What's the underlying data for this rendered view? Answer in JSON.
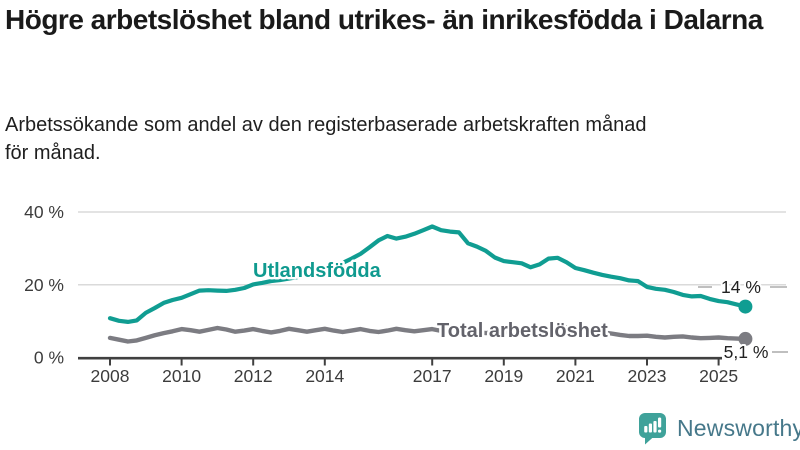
{
  "header": {
    "title": "Högre arbetslöshet bland utrikes- än inrikesfödda i Dalarna",
    "subtitle": "Arbetssökande som andel av den registerbaserade arbetskraften månad för månad."
  },
  "chart_data": {
    "type": "line",
    "title": "Högre arbetslöshet bland utrikes- än inrikesfödda i Dalarna",
    "subtitle": "Arbetssökande som andel av den registerbaserade arbetskraften månad för månad.",
    "unit": "%",
    "grid": "horizontal",
    "legend": "inline-labels",
    "ylim": [
      0,
      42
    ],
    "yticks": [
      {
        "label": "0 %",
        "value": 0
      },
      {
        "label": "20 %",
        "value": 20
      },
      {
        "label": "40 %",
        "value": 40
      }
    ],
    "xticks": [
      {
        "label": "2008",
        "year": 2008
      },
      {
        "label": "2010",
        "year": 2010
      },
      {
        "label": "2012",
        "year": 2012
      },
      {
        "label": "2014",
        "year": 2014
      },
      {
        "label": "2017",
        "year": 2017
      },
      {
        "label": "2019",
        "year": 2019
      },
      {
        "label": "2021",
        "year": 2021
      },
      {
        "label": "2023",
        "year": 2023
      },
      {
        "label": "2025",
        "year": 2025
      }
    ],
    "x": [
      2008,
      2008.25,
      2008.5,
      2008.75,
      2009,
      2009.25,
      2009.5,
      2009.75,
      2010,
      2010.25,
      2010.5,
      2010.75,
      2011,
      2011.25,
      2011.5,
      2011.75,
      2012,
      2012.25,
      2012.5,
      2012.75,
      2013,
      2013.25,
      2013.5,
      2013.75,
      2014,
      2014.25,
      2014.5,
      2014.75,
      2015,
      2015.25,
      2015.5,
      2015.75,
      2016,
      2016.25,
      2016.5,
      2016.75,
      2017,
      2017.25,
      2017.5,
      2017.75,
      2018,
      2018.25,
      2018.5,
      2018.75,
      2019,
      2019.25,
      2019.5,
      2019.75,
      2020,
      2020.25,
      2020.5,
      2020.75,
      2021,
      2021.25,
      2021.5,
      2021.75,
      2022,
      2022.25,
      2022.5,
      2022.75,
      2023,
      2023.25,
      2023.5,
      2023.75,
      2024,
      2024.25,
      2024.5,
      2024.75,
      2025,
      2025.25,
      2025.5,
      2025.75
    ],
    "series": [
      {
        "name": "Utlandsfödda",
        "color": "#109d92",
        "label_color": "#0f9a8f",
        "end_label": "14 %",
        "end_value": 14,
        "values": [
          10.8,
          10.1,
          9.8,
          10.2,
          12.3,
          13.6,
          15.0,
          15.8,
          16.4,
          17.4,
          18.4,
          18.5,
          18.4,
          18.3,
          18.6,
          19.1,
          20.1,
          20.5,
          21.0,
          21.3,
          21.7,
          22.1,
          22.6,
          23.3,
          24.2,
          25.0,
          26.0,
          27.2,
          28.5,
          30.3,
          32.2,
          33.4,
          32.7,
          33.2,
          34.0,
          35.0,
          36.0,
          35.0,
          34.6,
          34.4,
          31.4,
          30.5,
          29.3,
          27.5,
          26.5,
          26.2,
          25.9,
          24.8,
          25.6,
          27.2,
          27.4,
          26.2,
          24.6,
          24.0,
          23.3,
          22.7,
          22.2,
          21.8,
          21.2,
          21.0,
          19.4,
          18.9,
          18.6,
          18.0,
          17.2,
          16.8,
          16.9,
          16.1,
          15.5,
          15.2,
          14.6,
          14.0
        ]
      },
      {
        "name": "Total arbetslöshet",
        "color": "#7c7c82",
        "label_color": "#63636b",
        "end_label": "5,1 %",
        "end_value": 5.1,
        "values": [
          5.4,
          4.9,
          4.4,
          4.7,
          5.4,
          6.1,
          6.7,
          7.2,
          7.8,
          7.5,
          7.1,
          7.6,
          8.1,
          7.7,
          7.1,
          7.4,
          7.8,
          7.3,
          6.9,
          7.3,
          7.9,
          7.5,
          7.1,
          7.5,
          7.9,
          7.4,
          7.0,
          7.4,
          7.8,
          7.3,
          7.0,
          7.4,
          7.9,
          7.5,
          7.2,
          7.5,
          7.8,
          7.3,
          7.0,
          7.2,
          7.4,
          7.0,
          6.7,
          6.9,
          7.1,
          6.8,
          6.6,
          6.9,
          7.6,
          8.4,
          8.6,
          8.3,
          8.0,
          7.6,
          7.2,
          6.9,
          6.6,
          6.2,
          5.9,
          5.9,
          6.0,
          5.7,
          5.5,
          5.7,
          5.8,
          5.5,
          5.3,
          5.4,
          5.5,
          5.3,
          5.2,
          5.1
        ]
      }
    ]
  },
  "footer": {
    "brand": "Newsworthy",
    "logo_color": "#3fa29a",
    "wordmark_color": "#46788a"
  }
}
